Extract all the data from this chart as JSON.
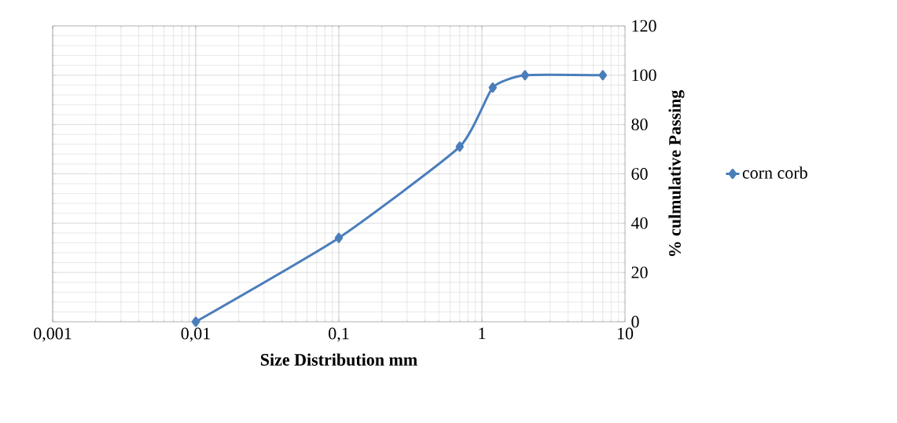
{
  "chart_data": {
    "type": "line",
    "xlabel": "Size Distribution mm",
    "ylabel": "% culmulative Passing",
    "log": "x",
    "grid": true,
    "legend": "right",
    "marker": "diamond",
    "line_style": "solid",
    "xlim": [
      0.001,
      10
    ],
    "ylim": [
      0,
      120
    ],
    "xticks": [
      {
        "value": 0.001,
        "label": "0,001"
      },
      {
        "value": 0.01,
        "label": "0,01"
      },
      {
        "value": 0.1,
        "label": "0,1"
      },
      {
        "value": 1,
        "label": "1"
      },
      {
        "value": 10,
        "label": "10"
      }
    ],
    "yticks": [
      0,
      20,
      40,
      60,
      80,
      100,
      120
    ],
    "series": [
      {
        "name": "corn corb",
        "color": "#4a7ebb",
        "x": [
          0.01,
          0.1,
          0.7,
          1.19,
          2,
          7
        ],
        "values": [
          0,
          34,
          71,
          95,
          100,
          100
        ]
      }
    ]
  }
}
